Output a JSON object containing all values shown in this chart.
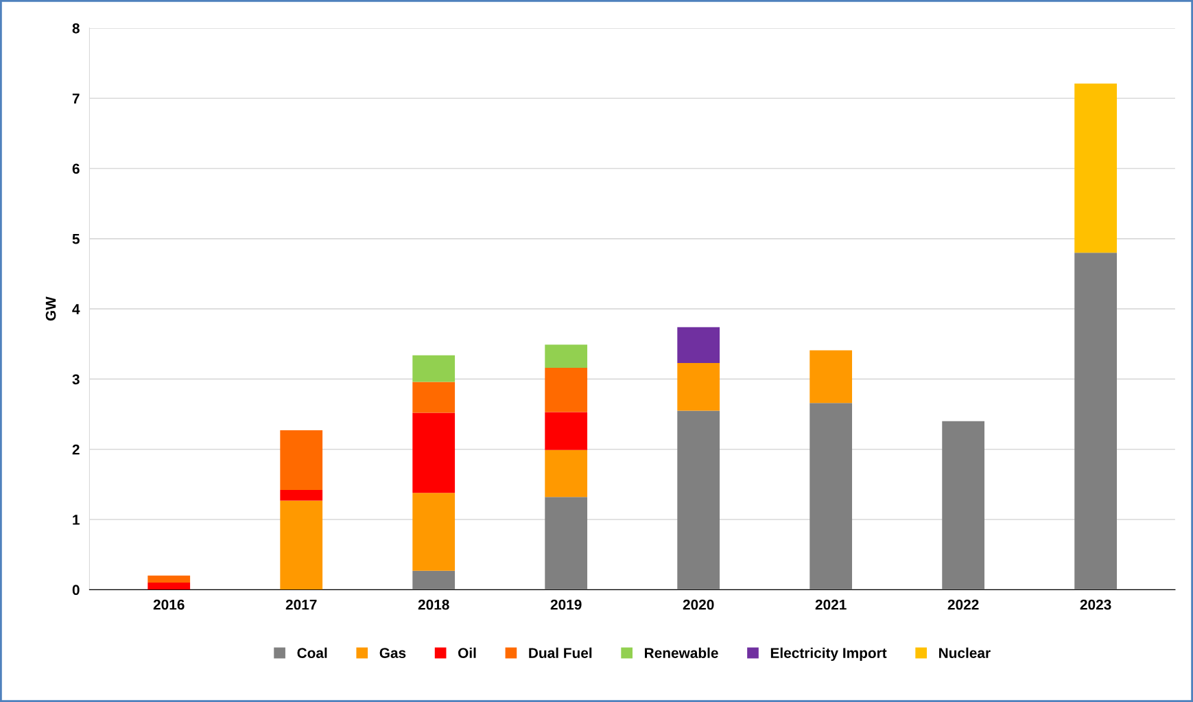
{
  "chart_data": {
    "type": "bar",
    "stacked": true,
    "ylabel": "GW",
    "categories": [
      "2016",
      "2017",
      "2018",
      "2019",
      "2020",
      "2021",
      "2022",
      "2023"
    ],
    "series": [
      {
        "name": "Coal",
        "color": "#808080",
        "values": [
          null,
          null,
          0.27,
          1.32,
          2.55,
          2.66,
          2.4,
          4.8
        ]
      },
      {
        "name": "Gas",
        "color": "#ff9900",
        "values": [
          null,
          1.27,
          1.11,
          0.67,
          0.68,
          0.75,
          null,
          null
        ]
      },
      {
        "name": "Oil",
        "color": "#ff0000",
        "values": [
          0.1,
          0.15,
          1.14,
          0.54,
          null,
          null,
          null,
          null
        ]
      },
      {
        "name": "Dual Fuel",
        "color": "#ff6a00",
        "values": [
          0.1,
          0.85,
          0.44,
          0.63,
          null,
          null,
          null,
          null
        ]
      },
      {
        "name": "Renewable",
        "color": "#92d050",
        "values": [
          null,
          null,
          0.38,
          0.33,
          null,
          null,
          null,
          null
        ]
      },
      {
        "name": "Electricity Import",
        "color": "#7030a0",
        "values": [
          null,
          null,
          null,
          null,
          0.51,
          null,
          null,
          null
        ]
      },
      {
        "name": "Nuclear",
        "color": "#ffc000",
        "values": [
          null,
          null,
          null,
          null,
          null,
          null,
          null,
          2.41
        ]
      }
    ],
    "ylim": [
      0,
      8
    ],
    "yticks": [
      0,
      1,
      2,
      3,
      4,
      5,
      6,
      7,
      8
    ],
    "grid": "y",
    "legend": "bottom"
  }
}
